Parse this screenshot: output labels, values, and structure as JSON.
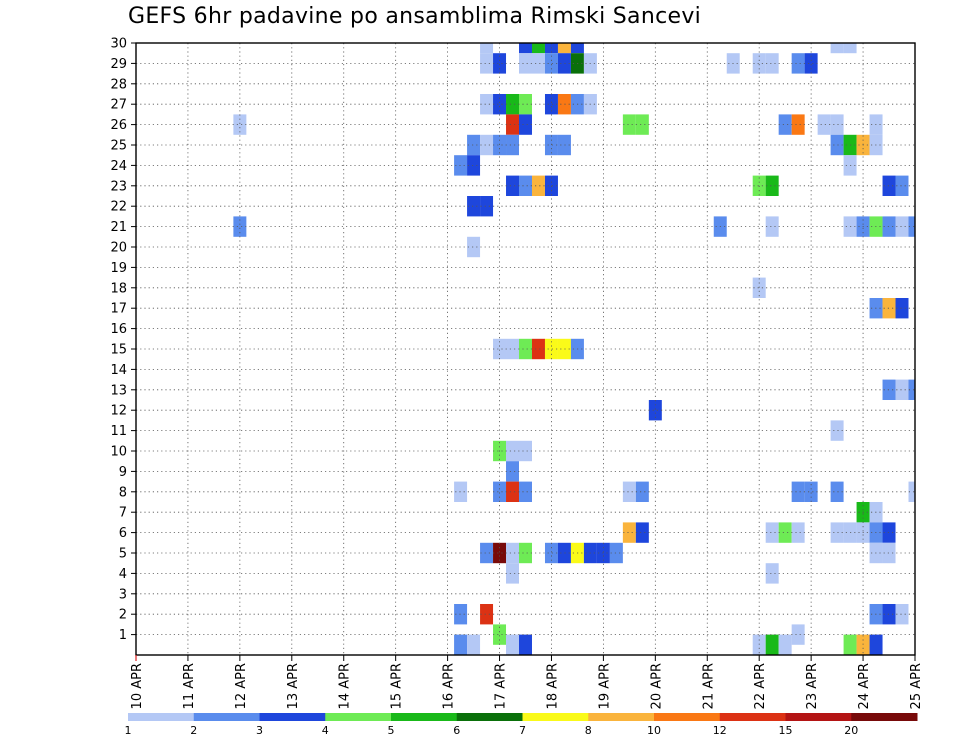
{
  "chart_data": {
    "type": "heatmap",
    "title": "GEFS 6hr padavine po ansamblima Rimski Sancevi",
    "xlabel": "",
    "ylabel": "",
    "x_tick_labels": [
      "10 APR",
      "11 APR",
      "12 APR",
      "13 APR",
      "14 APR",
      "15 APR",
      "16 APR",
      "17 APR",
      "18 APR",
      "19 APR",
      "20 APR",
      "21 APR",
      "22 APR",
      "23 APR",
      "24 APR",
      "25 APR"
    ],
    "x_range_days": [
      10,
      25
    ],
    "time_step_hours": 6,
    "y_tick_labels": [
      "1",
      "2",
      "3",
      "4",
      "5",
      "6",
      "7",
      "8",
      "9",
      "10",
      "11",
      "12",
      "13",
      "14",
      "15",
      "16",
      "17",
      "18",
      "19",
      "20",
      "21",
      "22",
      "23",
      "24",
      "25",
      "26",
      "27",
      "28",
      "29",
      "30"
    ],
    "y_range": [
      0,
      30
    ],
    "grid": true,
    "legend_placement": "bottom",
    "legend": {
      "labels": [
        "1",
        "2",
        "3",
        "4",
        "5",
        "6",
        "7",
        "8",
        "10",
        "12",
        "15",
        "20"
      ],
      "colors": [
        "#b4c8f5",
        "#5a8ced",
        "#1e46dc",
        "#6eeb55",
        "#19b919",
        "#0a700a",
        "#fafa19",
        "#fab43c",
        "#fa7814",
        "#dc3214",
        "#b41414",
        "#780a0a"
      ]
    },
    "cells": [
      [
        30,
        16.75,
        0
      ],
      [
        30,
        17.5,
        2
      ],
      [
        30,
        17.75,
        4
      ],
      [
        30,
        18.0,
        2
      ],
      [
        30,
        18.25,
        7
      ],
      [
        30,
        18.5,
        2
      ],
      [
        30,
        23.5,
        0
      ],
      [
        30,
        23.75,
        0
      ],
      [
        29,
        16.75,
        0
      ],
      [
        29,
        17.0,
        2
      ],
      [
        29,
        17.5,
        0
      ],
      [
        29,
        17.75,
        0
      ],
      [
        29,
        18.0,
        1
      ],
      [
        29,
        18.25,
        2
      ],
      [
        29,
        18.5,
        5
      ],
      [
        29,
        18.75,
        0
      ],
      [
        29,
        21.5,
        0
      ],
      [
        29,
        22.0,
        0
      ],
      [
        29,
        22.25,
        0
      ],
      [
        29,
        22.75,
        1
      ],
      [
        29,
        23.0,
        2
      ],
      [
        27,
        16.75,
        0
      ],
      [
        27,
        17.0,
        2
      ],
      [
        27,
        17.25,
        4
      ],
      [
        27,
        17.5,
        3
      ],
      [
        27,
        18.0,
        2
      ],
      [
        27,
        18.25,
        8
      ],
      [
        27,
        18.5,
        1
      ],
      [
        27,
        18.75,
        0
      ],
      [
        26,
        12.0,
        0
      ],
      [
        26,
        17.25,
        9
      ],
      [
        26,
        17.5,
        2
      ],
      [
        26,
        19.5,
        3
      ],
      [
        26,
        19.75,
        3
      ],
      [
        26,
        22.5,
        1
      ],
      [
        26,
        22.75,
        8
      ],
      [
        26,
        23.25,
        0
      ],
      [
        26,
        23.5,
        0
      ],
      [
        26,
        24.25,
        0
      ],
      [
        25,
        16.5,
        1
      ],
      [
        25,
        16.75,
        0
      ],
      [
        25,
        17.0,
        1
      ],
      [
        25,
        17.25,
        1
      ],
      [
        25,
        18.0,
        1
      ],
      [
        25,
        18.25,
        1
      ],
      [
        25,
        23.5,
        1
      ],
      [
        25,
        23.75,
        4
      ],
      [
        25,
        24.0,
        7
      ],
      [
        25,
        24.25,
        0
      ],
      [
        24,
        16.25,
        1
      ],
      [
        24,
        16.5,
        2
      ],
      [
        24,
        23.75,
        0
      ],
      [
        23,
        17.25,
        2
      ],
      [
        23,
        17.5,
        1
      ],
      [
        23,
        17.75,
        7
      ],
      [
        23,
        18.0,
        2
      ],
      [
        23,
        22.0,
        3
      ],
      [
        23,
        22.25,
        4
      ],
      [
        23,
        24.5,
        2
      ],
      [
        23,
        24.75,
        1
      ],
      [
        22,
        16.5,
        2
      ],
      [
        22,
        16.75,
        2
      ],
      [
        21,
        12.0,
        1
      ],
      [
        21,
        21.25,
        1
      ],
      [
        21,
        22.25,
        0
      ],
      [
        21,
        23.75,
        0
      ],
      [
        21,
        24.0,
        1
      ],
      [
        21,
        24.25,
        3
      ],
      [
        21,
        24.5,
        1
      ],
      [
        21,
        24.75,
        0
      ],
      [
        21,
        25.0,
        1
      ],
      [
        20,
        16.5,
        0
      ],
      [
        18,
        22.0,
        0
      ],
      [
        17,
        24.25,
        1
      ],
      [
        17,
        24.5,
        7
      ],
      [
        17,
        24.75,
        2
      ],
      [
        16,
        25.25,
        8
      ],
      [
        15,
        17.0,
        0
      ],
      [
        15,
        17.25,
        0
      ],
      [
        15,
        17.5,
        3
      ],
      [
        15,
        17.75,
        9
      ],
      [
        15,
        18.0,
        6
      ],
      [
        15,
        18.25,
        6
      ],
      [
        15,
        18.5,
        1
      ],
      [
        13,
        24.5,
        1
      ],
      [
        13,
        24.75,
        0
      ],
      [
        13,
        25.0,
        1
      ],
      [
        12,
        20.0,
        2
      ],
      [
        11,
        23.5,
        0
      ],
      [
        10,
        17.0,
        3
      ],
      [
        10,
        17.25,
        0
      ],
      [
        10,
        17.5,
        0
      ],
      [
        9,
        17.25,
        1
      ],
      [
        8,
        16.25,
        0
      ],
      [
        8,
        17.0,
        1
      ],
      [
        8,
        17.25,
        9
      ],
      [
        8,
        17.5,
        1
      ],
      [
        8,
        19.5,
        0
      ],
      [
        8,
        19.75,
        1
      ],
      [
        8,
        22.75,
        1
      ],
      [
        8,
        23.0,
        1
      ],
      [
        8,
        23.5,
        1
      ],
      [
        8,
        25.0,
        0
      ],
      [
        7,
        24.0,
        4
      ],
      [
        7,
        24.25,
        0
      ],
      [
        6,
        19.5,
        7
      ],
      [
        6,
        19.75,
        2
      ],
      [
        6,
        22.25,
        0
      ],
      [
        6,
        22.5,
        3
      ],
      [
        6,
        22.75,
        0
      ],
      [
        6,
        23.5,
        0
      ],
      [
        6,
        23.75,
        0
      ],
      [
        6,
        24.0,
        0
      ],
      [
        6,
        24.25,
        1
      ],
      [
        6,
        24.5,
        2
      ],
      [
        5,
        16.75,
        1
      ],
      [
        5,
        17.0,
        11
      ],
      [
        5,
        17.25,
        0
      ],
      [
        5,
        17.5,
        3
      ],
      [
        5,
        18.0,
        1
      ],
      [
        5,
        18.25,
        2
      ],
      [
        5,
        18.5,
        6
      ],
      [
        5,
        18.75,
        2
      ],
      [
        5,
        19.0,
        2
      ],
      [
        5,
        19.25,
        1
      ],
      [
        5,
        24.25,
        0
      ],
      [
        5,
        24.5,
        0
      ],
      [
        5,
        25.25,
        1
      ],
      [
        4,
        17.25,
        0
      ],
      [
        4,
        22.25,
        0
      ],
      [
        2,
        16.25,
        1
      ],
      [
        2,
        16.75,
        9
      ],
      [
        2,
        24.25,
        1
      ],
      [
        2,
        24.5,
        2
      ],
      [
        2,
        24.75,
        0
      ],
      [
        1,
        17.0,
        3
      ],
      [
        1,
        22.75,
        0
      ],
      [
        0.5,
        16.25,
        1
      ],
      [
        0.5,
        16.5,
        0
      ],
      [
        0.5,
        17.25,
        0
      ],
      [
        0.5,
        17.5,
        2
      ],
      [
        0.5,
        22.0,
        0
      ],
      [
        0.5,
        22.25,
        4
      ],
      [
        0.5,
        22.5,
        0
      ],
      [
        0.5,
        23.75,
        3
      ],
      [
        0.5,
        24.0,
        7
      ],
      [
        0.5,
        24.25,
        2
      ]
    ]
  }
}
